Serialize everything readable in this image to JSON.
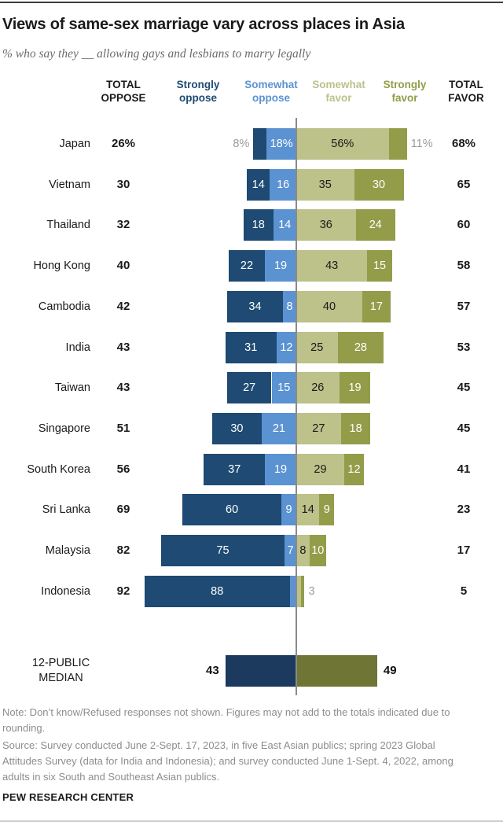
{
  "title": "Views of same-sex marriage vary across places in Asia",
  "subtitle": "% who say they __ allowing gays and lesbians to marry legally",
  "header": {
    "total_oppose": "TOTAL\nOPPOSE",
    "strongly_oppose": "Strongly\noppose",
    "somewhat_oppose": "Somewhat\noppose",
    "somewhat_favor": "Somewhat\nfavor",
    "strongly_favor": "Strongly\nfavor",
    "total_favor": "TOTAL\nFAVOR"
  },
  "colors": {
    "strongly_oppose": "#1e4a73",
    "somewhat_oppose": "#5b92d2",
    "somewhat_favor": "#bdc18a",
    "strongly_favor": "#939c49",
    "median_oppose": "#1b3a5d",
    "median_favor": "#6f7535",
    "axis_line": "#8a8a8a",
    "outside_label": "#9b9b9b",
    "label_on_dark": "#ffffff",
    "label_on_light": "#1a1a1a"
  },
  "chart_data": {
    "type": "bar",
    "variant": "diverging-stacked-horizontal",
    "unit": "%",
    "title": "Views of same-sex marriage vary across places in Asia",
    "series": [
      "Strongly oppose",
      "Somewhat oppose",
      "Somewhat favor",
      "Strongly favor"
    ],
    "rows": [
      {
        "country": "Japan",
        "total_oppose": "26%",
        "strongly_oppose": 8,
        "somewhat_oppose": 18,
        "somewhat_favor": 56,
        "strongly_favor": 11,
        "total_favor": "68%",
        "segment_labels": {
          "strongly_oppose": "",
          "somewhat_oppose": "18%",
          "somewhat_favor": "56%",
          "strongly_favor": ""
        },
        "outside_left": "8%",
        "outside_right": "11%"
      },
      {
        "country": "Vietnam",
        "total_oppose": "30",
        "strongly_oppose": 14,
        "somewhat_oppose": 16,
        "somewhat_favor": 35,
        "strongly_favor": 30,
        "total_favor": "65",
        "segment_labels": {
          "strongly_oppose": "14",
          "somewhat_oppose": "16",
          "somewhat_favor": "35",
          "strongly_favor": "30"
        }
      },
      {
        "country": "Thailand",
        "total_oppose": "32",
        "strongly_oppose": 18,
        "somewhat_oppose": 14,
        "somewhat_favor": 36,
        "strongly_favor": 24,
        "total_favor": "60",
        "segment_labels": {
          "strongly_oppose": "18",
          "somewhat_oppose": "14",
          "somewhat_favor": "36",
          "strongly_favor": "24"
        }
      },
      {
        "country": "Hong Kong",
        "total_oppose": "40",
        "strongly_oppose": 22,
        "somewhat_oppose": 19,
        "somewhat_favor": 43,
        "strongly_favor": 15,
        "total_favor": "58",
        "segment_labels": {
          "strongly_oppose": "22",
          "somewhat_oppose": "19",
          "somewhat_favor": "43",
          "strongly_favor": "15"
        }
      },
      {
        "country": "Cambodia",
        "total_oppose": "42",
        "strongly_oppose": 34,
        "somewhat_oppose": 8,
        "somewhat_favor": 40,
        "strongly_favor": 17,
        "total_favor": "57",
        "segment_labels": {
          "strongly_oppose": "34",
          "somewhat_oppose": "8",
          "somewhat_favor": "40",
          "strongly_favor": "17"
        }
      },
      {
        "country": "India",
        "total_oppose": "43",
        "strongly_oppose": 31,
        "somewhat_oppose": 12,
        "somewhat_favor": 25,
        "strongly_favor": 28,
        "total_favor": "53",
        "segment_labels": {
          "strongly_oppose": "31",
          "somewhat_oppose": "12",
          "somewhat_favor": "25",
          "strongly_favor": "28"
        }
      },
      {
        "country": "Taiwan",
        "total_oppose": "43",
        "strongly_oppose": 27,
        "somewhat_oppose": 15,
        "somewhat_favor": 26,
        "strongly_favor": 19,
        "total_favor": "45",
        "segment_labels": {
          "strongly_oppose": "27",
          "somewhat_oppose": "15",
          "somewhat_favor": "26",
          "strongly_favor": "19"
        }
      },
      {
        "country": "Singapore",
        "total_oppose": "51",
        "strongly_oppose": 30,
        "somewhat_oppose": 21,
        "somewhat_favor": 27,
        "strongly_favor": 18,
        "total_favor": "45",
        "segment_labels": {
          "strongly_oppose": "30",
          "somewhat_oppose": "21",
          "somewhat_favor": "27",
          "strongly_favor": "18"
        }
      },
      {
        "country": "South Korea",
        "total_oppose": "56",
        "strongly_oppose": 37,
        "somewhat_oppose": 19,
        "somewhat_favor": 29,
        "strongly_favor": 12,
        "total_favor": "41",
        "segment_labels": {
          "strongly_oppose": "37",
          "somewhat_oppose": "19",
          "somewhat_favor": "29",
          "strongly_favor": "12"
        }
      },
      {
        "country": "Sri Lanka",
        "total_oppose": "69",
        "strongly_oppose": 60,
        "somewhat_oppose": 9,
        "somewhat_favor": 14,
        "strongly_favor": 9,
        "total_favor": "23",
        "segment_labels": {
          "strongly_oppose": "60",
          "somewhat_oppose": "9",
          "somewhat_favor": "14",
          "strongly_favor": "9"
        }
      },
      {
        "country": "Malaysia",
        "total_oppose": "82",
        "strongly_oppose": 75,
        "somewhat_oppose": 7,
        "somewhat_favor": 8,
        "strongly_favor": 10,
        "total_favor": "17",
        "segment_labels": {
          "strongly_oppose": "75",
          "somewhat_oppose": "7",
          "somewhat_favor": "8",
          "strongly_favor": "10"
        }
      },
      {
        "country": "Indonesia",
        "total_oppose": "92",
        "strongly_oppose": 88,
        "somewhat_oppose": 4,
        "somewhat_favor": 3,
        "strongly_favor": 2,
        "total_favor": "5",
        "segment_labels": {
          "strongly_oppose": "88",
          "somewhat_oppose": "",
          "somewhat_favor": "",
          "strongly_favor": ""
        },
        "outside_right": "3"
      }
    ],
    "median_row": {
      "label": "12-PUBLIC\nMEDIAN",
      "oppose": 43,
      "favor": 49,
      "oppose_value": "43",
      "favor_value": "49"
    }
  },
  "notes": {
    "note": "Note: Don’t know/Refused responses not shown. Figures may not add to the totals indicated due to rounding.",
    "source": "Source: Survey conducted June 2-Sept. 17, 2023, in five East Asian publics; spring 2023 Global Attitudes Survey (data for India and Indonesia); and survey conducted June 1-Sept. 4, 2022, among adults in six South and Southeast Asian publics.",
    "credit": "PEW RESEARCH CENTER"
  }
}
